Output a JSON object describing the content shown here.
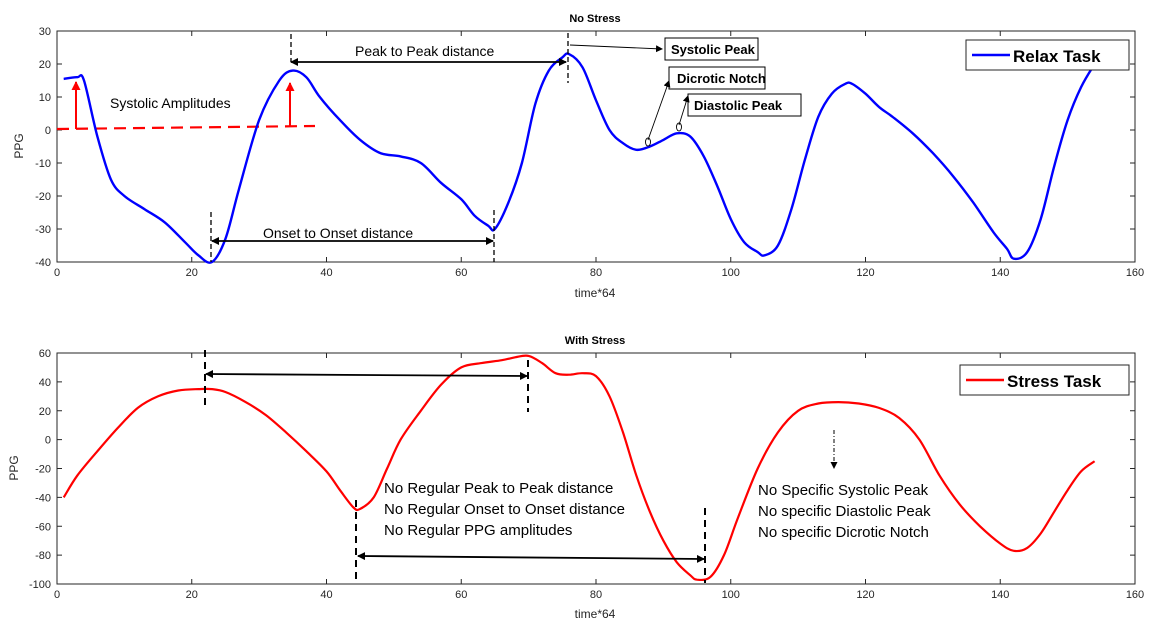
{
  "chart_data": [
    {
      "type": "line",
      "title": "No Stress",
      "xlabel": "time*64",
      "ylabel": "PPG",
      "xlim": [
        0,
        160
      ],
      "ylim": [
        -40,
        30
      ],
      "xticks": [
        "0",
        "20",
        "40",
        "60",
        "80",
        "100",
        "120",
        "140",
        "160"
      ],
      "yticks": [
        "-40",
        "-30",
        "-20",
        "-10",
        "0",
        "10",
        "20",
        "30"
      ],
      "legend": "top-right",
      "grid": false,
      "series": [
        {
          "name": "Relax Task",
          "color": "#0000ff",
          "x": [
            1,
            3,
            4,
            6,
            8,
            10,
            13,
            16,
            19,
            21,
            23,
            25,
            27,
            30,
            33,
            35,
            37,
            39,
            42,
            45,
            48,
            51,
            54,
            57,
            60,
            62,
            64,
            65,
            67,
            69,
            71,
            73,
            75,
            76,
            78,
            80,
            82,
            84,
            86,
            88,
            90,
            92,
            94,
            96,
            98,
            100,
            102,
            104,
            105,
            107,
            109,
            111,
            113,
            115,
            117,
            118,
            120,
            122,
            124,
            127,
            130,
            133,
            136,
            139,
            141,
            142,
            144,
            146,
            148,
            150,
            152,
            154
          ],
          "y": [
            15.5,
            16,
            15,
            -2,
            -15,
            -20,
            -24,
            -28,
            -34,
            -38,
            -40,
            -33,
            -18,
            3,
            15,
            18,
            16,
            10,
            3,
            -3,
            -7,
            -8,
            -10,
            -16,
            -21,
            -26,
            -29,
            -30,
            -22,
            -10,
            8,
            18,
            22,
            23,
            19,
            9,
            0,
            -4,
            -6,
            -5,
            -3,
            -1,
            -2,
            -8,
            -17,
            -27,
            -34,
            -37,
            -38,
            -35,
            -24,
            -9,
            4,
            11,
            14,
            14,
            11,
            7,
            4,
            -1,
            -7,
            -14,
            -22,
            -31,
            -36,
            -39,
            -37,
            -27,
            -11,
            3,
            13,
            20
          ]
        }
      ],
      "annotations": {
        "peak_to_peak": "Peak to Peak distance",
        "onset_to_onset": "Onset to Onset distance",
        "systolic_amplitudes": "Systolic Amplitudes",
        "systolic_peak": "Systolic Peak",
        "dicrotic_notch": "Dicrotic Notch",
        "diastolic_peak": "Diastolic Peak"
      }
    },
    {
      "type": "line",
      "title": "With Stress",
      "xlabel": "time*64",
      "ylabel": "PPG",
      "xlim": [
        0,
        160
      ],
      "ylim": [
        -100,
        60
      ],
      "xticks": [
        "0",
        "20",
        "40",
        "60",
        "80",
        "100",
        "120",
        "140",
        "160"
      ],
      "yticks": [
        "-100",
        "-80",
        "-60",
        "-40",
        "-20",
        "0",
        "20",
        "40",
        "60"
      ],
      "legend": "top-right",
      "grid": false,
      "series": [
        {
          "name": "Stress Task",
          "color": "#ff0000",
          "x": [
            1,
            3,
            6,
            9,
            12,
            15,
            18,
            21,
            23,
            25,
            28,
            31,
            34,
            37,
            40,
            42,
            44,
            45,
            47,
            49,
            51,
            54,
            57,
            60,
            63,
            66,
            68,
            70,
            72,
            74,
            76,
            78,
            80,
            82,
            84,
            86,
            88,
            90,
            92,
            94,
            95,
            97,
            99,
            101,
            104,
            107,
            110,
            113,
            116,
            119,
            122,
            125,
            128,
            131,
            134,
            137,
            140,
            142,
            144,
            146,
            148,
            150,
            152,
            154
          ],
          "y": [
            -40,
            -25,
            -8,
            8,
            22,
            30,
            34,
            35,
            35,
            33,
            26,
            17,
            5,
            -8,
            -22,
            -35,
            -47,
            -48,
            -40,
            -20,
            0,
            20,
            38,
            50,
            53,
            55,
            57,
            58,
            53,
            46,
            45,
            46,
            44,
            30,
            5,
            -25,
            -50,
            -70,
            -85,
            -94,
            -97,
            -95,
            -80,
            -55,
            -20,
            5,
            20,
            25,
            26,
            25,
            22,
            15,
            0,
            -25,
            -45,
            -60,
            -72,
            -77,
            -75,
            -65,
            -50,
            -35,
            -22,
            -15
          ]
        }
      ],
      "annotations": {
        "lines": [
          "No Regular Peak to Peak distance",
          "No Regular Onset to Onset distance",
          "No Regular PPG amplitudes"
        ],
        "specific_lines": [
          "No Specific Systolic Peak",
          "No specific Diastolic Peak",
          "No specific Dicrotic Notch"
        ]
      }
    }
  ]
}
